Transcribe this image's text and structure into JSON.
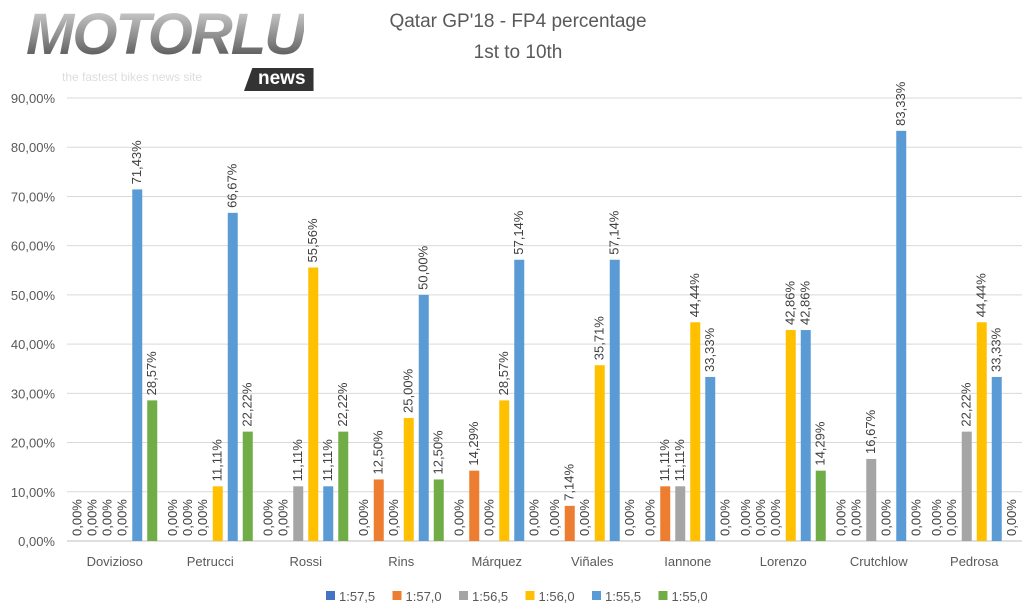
{
  "logo": {
    "brand": "MOTORLU",
    "tagline": "the fastest bikes news site",
    "badge": "news"
  },
  "chart_data": {
    "type": "bar",
    "title": "Qatar GP'18 - FP4 percentage",
    "subtitle": "1st to 10th",
    "xlabel": "",
    "ylabel": "",
    "ylim": [
      0,
      90
    ],
    "yticks": [
      "0,00%",
      "10,00%",
      "20,00%",
      "30,00%",
      "40,00%",
      "50,00%",
      "60,00%",
      "70,00%",
      "80,00%",
      "90,00%"
    ],
    "grid": true,
    "legend_position": "bottom",
    "categories": [
      "Dovizioso",
      "Petrucci",
      "Rossi",
      "Rins",
      "Márquez",
      "Viñales",
      "Iannone",
      "Lorenzo",
      "Crutchlow",
      "Pedrosa"
    ],
    "series": [
      {
        "name": "1:57,5",
        "color": "#4472c4",
        "values": [
          0,
          0,
          0,
          0,
          0,
          0,
          0,
          0,
          0,
          0
        ]
      },
      {
        "name": "1:57,0",
        "color": "#ed7d31",
        "values": [
          0,
          0,
          0,
          12.5,
          14.29,
          7.14,
          11.11,
          0,
          0,
          0
        ]
      },
      {
        "name": "1:56,5",
        "color": "#a5a5a5",
        "values": [
          0,
          0,
          11.11,
          0,
          0,
          0,
          11.11,
          0,
          16.67,
          22.22
        ]
      },
      {
        "name": "1:56,0",
        "color": "#ffc000",
        "values": [
          0,
          11.11,
          55.56,
          25.0,
          28.57,
          35.71,
          44.44,
          42.86,
          0,
          44.44
        ]
      },
      {
        "name": "1:55,5",
        "color": "#5b9bd5",
        "values": [
          71.43,
          66.67,
          11.11,
          50.0,
          57.14,
          57.14,
          33.33,
          42.86,
          83.33,
          33.33
        ]
      },
      {
        "name": "1:55,0",
        "color": "#70ad47",
        "values": [
          28.57,
          22.22,
          22.22,
          12.5,
          0,
          0,
          0,
          14.29,
          0,
          0
        ]
      }
    ]
  }
}
